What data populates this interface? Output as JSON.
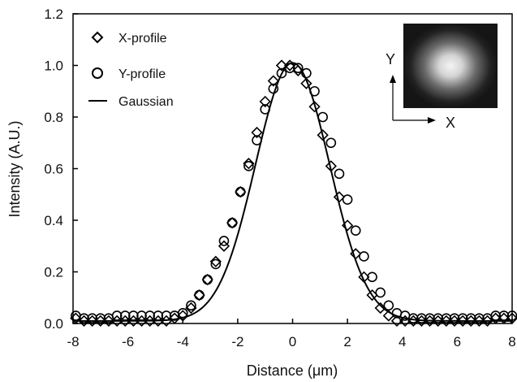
{
  "chart_data": {
    "type": "scatter",
    "xlabel": "Distance (μm)",
    "ylabel": "Intensity (A.U.)",
    "xlim": [
      -8,
      8
    ],
    "ylim": [
      0,
      1.2
    ],
    "xticks": [
      "-8",
      "-6",
      "-4",
      "-2",
      "0",
      "2",
      "4",
      "6",
      "8"
    ],
    "yticks": [
      "0.0",
      "0.2",
      "0.4",
      "0.6",
      "0.8",
      "1.0",
      "1.2"
    ],
    "grid": false,
    "legend_position": "top-left",
    "series": [
      {
        "name": "X-profile",
        "marker": "diamond",
        "x": [
          -7.9,
          -7.6,
          -7.3,
          -7.0,
          -6.7,
          -6.4,
          -6.1,
          -5.8,
          -5.5,
          -5.2,
          -4.9,
          -4.6,
          -4.3,
          -4.0,
          -3.7,
          -3.4,
          -3.1,
          -2.8,
          -2.5,
          -2.2,
          -1.9,
          -1.6,
          -1.3,
          -1.0,
          -0.7,
          -0.4,
          -0.1,
          0.2,
          0.5,
          0.8,
          1.1,
          1.4,
          1.7,
          2.0,
          2.3,
          2.6,
          2.9,
          3.2,
          3.5,
          3.8,
          4.1,
          4.4,
          4.7,
          5.0,
          5.3,
          5.6,
          5.9,
          6.2,
          6.5,
          6.8,
          7.1,
          7.4,
          7.7,
          8.0
        ],
        "y": [
          0.02,
          0.01,
          0.01,
          0.01,
          0.01,
          0.01,
          0.01,
          0.01,
          0.01,
          0.01,
          0.01,
          0.01,
          0.02,
          0.03,
          0.06,
          0.11,
          0.17,
          0.24,
          0.3,
          0.39,
          0.51,
          0.62,
          0.74,
          0.86,
          0.94,
          1.0,
          1.0,
          0.98,
          0.93,
          0.84,
          0.73,
          0.61,
          0.49,
          0.38,
          0.27,
          0.18,
          0.11,
          0.06,
          0.03,
          0.01,
          0.01,
          0.01,
          0.01,
          0.01,
          0.01,
          0.01,
          0.01,
          0.01,
          0.01,
          0.01,
          0.01,
          0.02,
          0.02,
          0.02
        ]
      },
      {
        "name": "Y-profile",
        "marker": "circle",
        "x": [
          -7.9,
          -7.6,
          -7.3,
          -7.0,
          -6.7,
          -6.4,
          -6.1,
          -5.8,
          -5.5,
          -5.2,
          -4.9,
          -4.6,
          -4.3,
          -4.0,
          -3.7,
          -3.4,
          -3.1,
          -2.8,
          -2.5,
          -2.2,
          -1.9,
          -1.6,
          -1.3,
          -1.0,
          -0.7,
          -0.4,
          -0.1,
          0.2,
          0.5,
          0.8,
          1.1,
          1.4,
          1.7,
          2.0,
          2.3,
          2.6,
          2.9,
          3.2,
          3.5,
          3.8,
          4.1,
          4.4,
          4.7,
          5.0,
          5.3,
          5.6,
          5.9,
          6.2,
          6.5,
          6.8,
          7.1,
          7.4,
          7.7,
          8.0
        ],
        "y": [
          0.03,
          0.02,
          0.02,
          0.02,
          0.02,
          0.03,
          0.03,
          0.03,
          0.03,
          0.03,
          0.03,
          0.03,
          0.03,
          0.04,
          0.07,
          0.11,
          0.17,
          0.23,
          0.32,
          0.39,
          0.51,
          0.61,
          0.71,
          0.83,
          0.91,
          0.97,
          0.99,
          0.99,
          0.97,
          0.9,
          0.8,
          0.7,
          0.58,
          0.48,
          0.36,
          0.26,
          0.18,
          0.12,
          0.07,
          0.04,
          0.03,
          0.02,
          0.02,
          0.02,
          0.02,
          0.02,
          0.02,
          0.02,
          0.02,
          0.02,
          0.02,
          0.03,
          0.03,
          0.03
        ]
      },
      {
        "name": "Gaussian",
        "marker": "line",
        "amplitude": 1.0,
        "center": 0.0,
        "sigma": 1.35,
        "offset": 0.01
      }
    ],
    "inset": {
      "x_axis_label": "X",
      "y_axis_label": "Y"
    }
  }
}
